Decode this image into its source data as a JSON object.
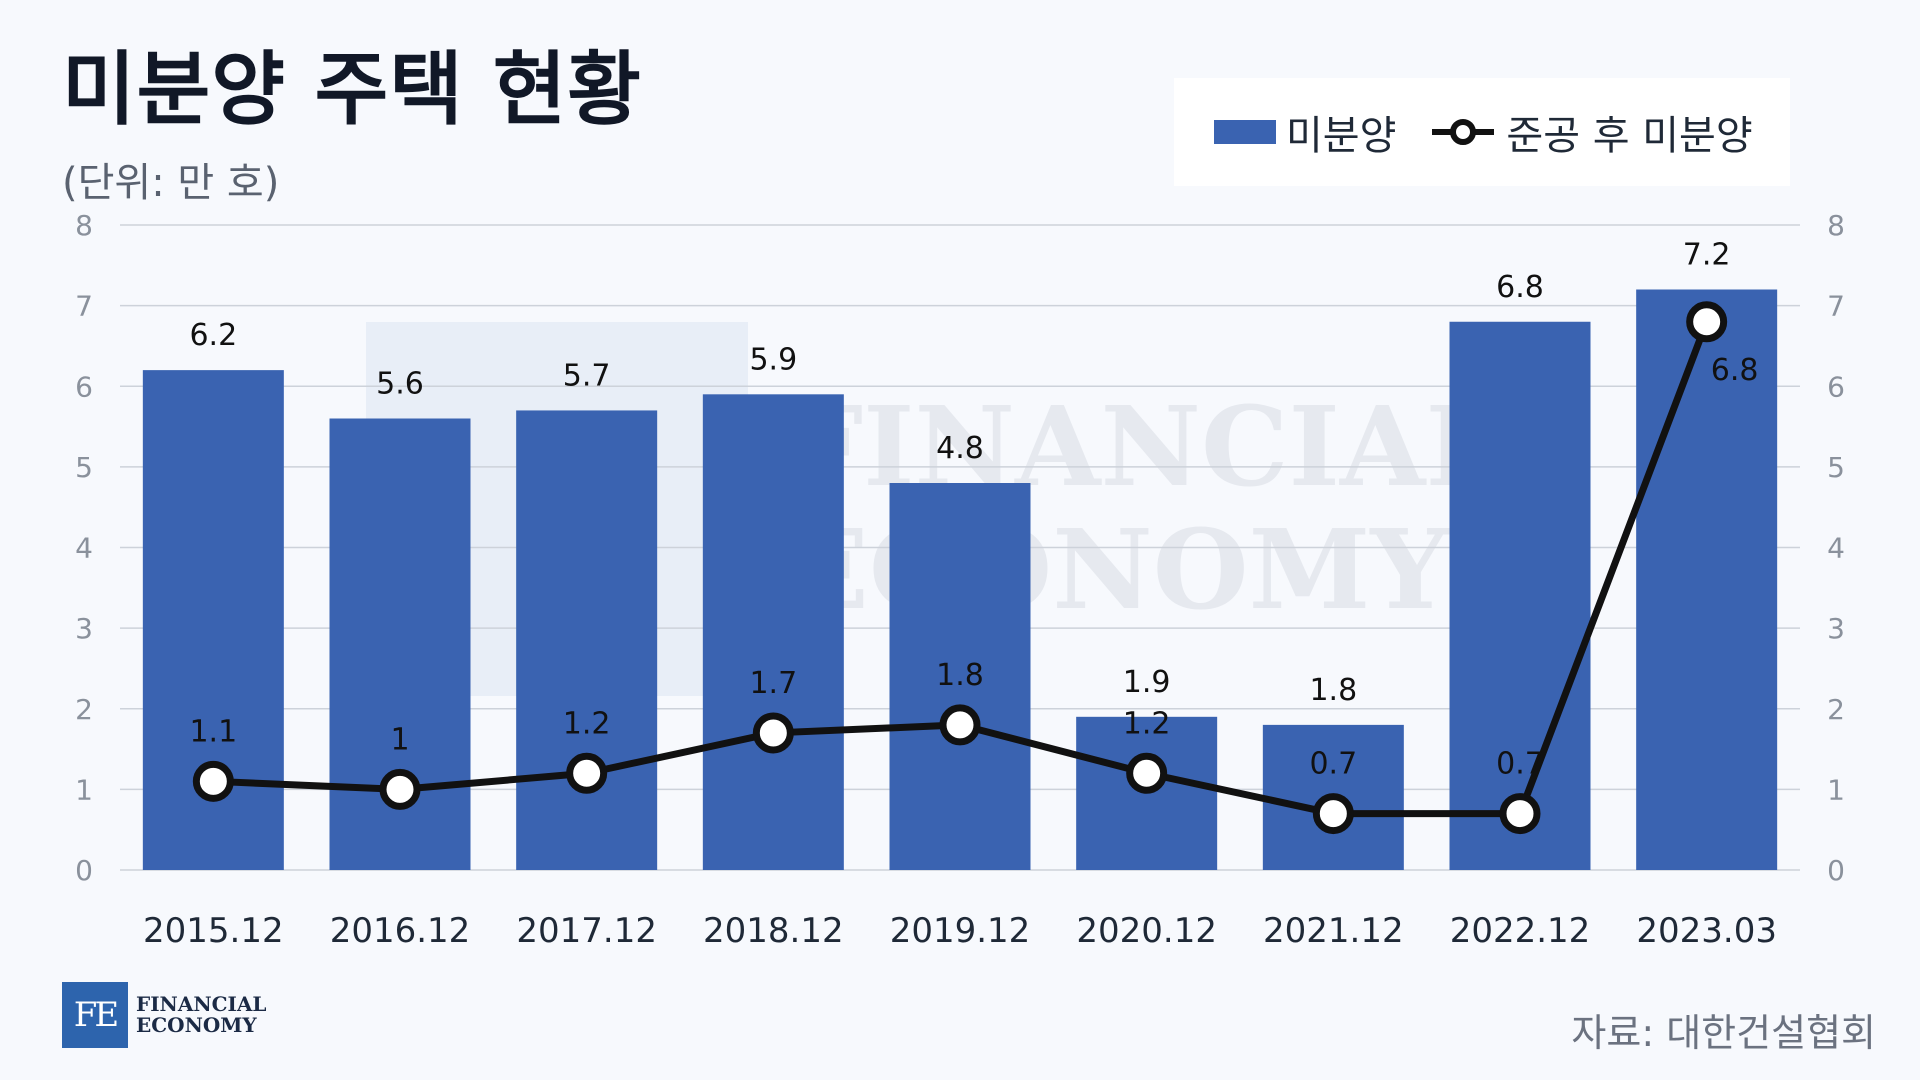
{
  "header": {
    "title": "미분양 주택 현황",
    "subtitle": "(단위: 만 호)"
  },
  "legend": {
    "bar_label": "미분양",
    "line_label": "준공 후 미분양"
  },
  "footer": {
    "source": "자료: 대한건설협회",
    "logo_mark": "FE",
    "logo_line1": "FINANCIAL",
    "logo_line2": "ECONOMY"
  },
  "watermark": {
    "line1": "FINANCIAL",
    "line2": "ECONOMY"
  },
  "colors": {
    "bar": "#3a63b1",
    "line": "#111111",
    "grid": "#cdd2da",
    "axis_text": "#8a919c"
  },
  "chart_data": {
    "type": "bar",
    "categories": [
      "2015.12",
      "2016.12",
      "2017.12",
      "2018.12",
      "2019.12",
      "2020.12",
      "2021.12",
      "2022.12",
      "2023.03"
    ],
    "series": [
      {
        "name": "미분양",
        "type": "bar",
        "values": [
          6.2,
          5.6,
          5.7,
          5.9,
          4.8,
          1.9,
          1.8,
          6.8,
          7.2
        ]
      },
      {
        "name": "준공 후 미분양",
        "type": "line",
        "values": [
          1.1,
          1,
          1.2,
          1.7,
          1.8,
          1.2,
          0.7,
          0.7,
          6.8
        ]
      }
    ],
    "ylim": [
      0,
      8
    ],
    "yticks": [
      "0",
      "1",
      "2",
      "3",
      "4",
      "5",
      "6",
      "7",
      "8"
    ],
    "y2lim": [
      0,
      8
    ],
    "grid": true,
    "legend_position": "top-right"
  }
}
